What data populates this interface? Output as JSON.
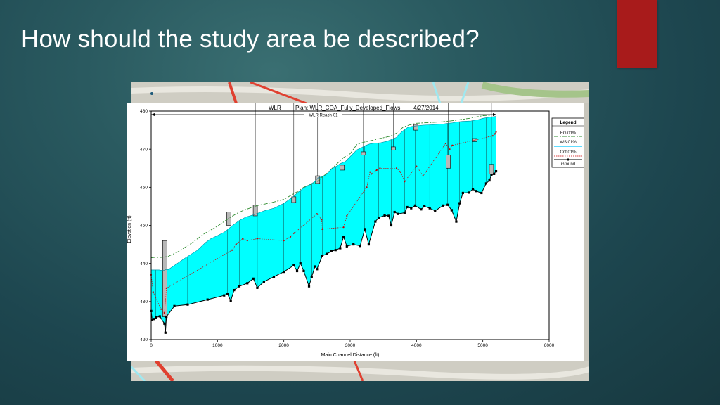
{
  "slide": {
    "title": "How should the study area be described?"
  },
  "colors": {
    "accent_bar": "#a81b1b",
    "water_fill": "#00ffff",
    "ground_line": "#000000",
    "energy_grade": "#2e8b2e",
    "critical_depth": "#cc0000"
  },
  "chart_data": {
    "type": "line",
    "header": {
      "project": "WLR",
      "plan": "Plan: WLR_COA_Fully_Developed_Flows",
      "date": "4/27/2014"
    },
    "reach_label": "WLR Reach-01",
    "xlabel": "Main Channel Distance (ft)",
    "ylabel": "Elevation (ft)",
    "xlim": [
      0,
      6000
    ],
    "ylim": [
      420,
      480
    ],
    "x_ticks": [
      0,
      1000,
      2000,
      3000,
      4000,
      5000,
      6000
    ],
    "y_ticks": [
      420,
      430,
      440,
      450,
      460,
      470,
      480
    ],
    "grid": false,
    "legend_position": "top-right",
    "legend": {
      "title": "Legend",
      "items": [
        {
          "label": "EG  01%",
          "key": "eg"
        },
        {
          "label": "WS  01%",
          "key": "ws"
        },
        {
          "label": "Crit  01%",
          "key": "crit"
        },
        {
          "label": "Ground",
          "key": "ground"
        }
      ]
    },
    "series": [
      {
        "name": "Ground",
        "x": [
          0,
          15,
          40,
          70,
          130,
          200,
          215,
          230,
          350,
          550,
          850,
          1100,
          1150,
          1200,
          1250,
          1330,
          1450,
          1540,
          1600,
          1700,
          1850,
          2000,
          2150,
          2200,
          2250,
          2300,
          2380,
          2420,
          2470,
          2500,
          2580,
          2650,
          2720,
          2780,
          2850,
          2900,
          2950,
          3050,
          3150,
          3220,
          3280,
          3380,
          3430,
          3520,
          3580,
          3620,
          3670,
          3720,
          3820,
          3860,
          3920,
          3980,
          4070,
          4120,
          4200,
          4280,
          4400,
          4470,
          4530,
          4600,
          4650,
          4700,
          4790,
          4850,
          4900,
          4980,
          5050,
          5100,
          5130,
          5170,
          5200
        ],
        "y": [
          427.5,
          425.2,
          425.4,
          425.8,
          426.1,
          424.2,
          421.8,
          426.0,
          428.8,
          429.2,
          430.5,
          431.6,
          432.0,
          430.2,
          433.0,
          434.0,
          434.8,
          436.0,
          433.6,
          435.2,
          436.5,
          437.8,
          439.5,
          438.0,
          440.0,
          438.0,
          434.0,
          436.5,
          439.2,
          438.5,
          442.0,
          442.5,
          443.2,
          443.5,
          444.0,
          447.0,
          444.5,
          445.0,
          444.6,
          449.0,
          445.0,
          451.0,
          452.0,
          452.6,
          452.5,
          450.0,
          453.5,
          453.0,
          453.3,
          454.8,
          454.5,
          455.2,
          454.2,
          455.0,
          454.5,
          453.8,
          455.2,
          455.4,
          454.0,
          451.0,
          455.8,
          458.5,
          458.6,
          459.5,
          459.0,
          458.5,
          461.0,
          461.8,
          463.2,
          463.5,
          464.2
        ]
      },
      {
        "name": "WS  01%",
        "x": [
          0,
          30,
          60,
          90,
          120,
          150,
          190,
          200,
          220,
          260,
          520,
          700,
          820,
          900,
          1000,
          1100,
          1180,
          1230,
          1330,
          1430,
          1550,
          1610,
          1700,
          1850,
          2000,
          2100,
          2150,
          2200,
          2300,
          2400,
          2450,
          2520,
          2560,
          2630,
          2720,
          2800,
          2850,
          2930,
          3100,
          3180,
          3220,
          3300,
          3380,
          3460,
          3560,
          3630,
          3700,
          3720,
          3780,
          3860,
          3880,
          3940,
          4040,
          4100,
          4200,
          4300,
          4400,
          4480,
          4540,
          4590,
          4640,
          4700,
          4820,
          4880,
          4920,
          5000,
          5100,
          5200
        ],
        "y": [
          438.3,
          438.3,
          438.3,
          438.3,
          438.3,
          438.2,
          438.2,
          438.2,
          438.4,
          438.4,
          441.5,
          443.5,
          445.5,
          446.5,
          447.3,
          448.2,
          449.3,
          450.0,
          451.3,
          452.2,
          452.8,
          453.2,
          453.8,
          454.5,
          455.8,
          457.0,
          457.6,
          458.5,
          459.8,
          460.8,
          461.3,
          462.5,
          462.7,
          463.2,
          464.8,
          465.6,
          466.2,
          466.8,
          469.8,
          470.5,
          470.9,
          471.4,
          471.6,
          471.7,
          472.1,
          472.6,
          473.1,
          473.6,
          474.6,
          475.6,
          475.8,
          476.0,
          476.2,
          476.3,
          476.4,
          476.5,
          476.6,
          476.8,
          476.9,
          477.1,
          477.2,
          477.3,
          477.4,
          477.6,
          477.7,
          478.1,
          478.4,
          478.6
        ]
      },
      {
        "name": "EG  01%",
        "x": [
          0,
          50,
          150,
          250,
          400,
          600,
          800,
          1000,
          1100,
          1200,
          1300,
          1400,
          1500,
          1600,
          1800,
          2000,
          2100,
          2200,
          2300,
          2500,
          2700,
          2900,
          3000,
          3100,
          3200,
          3300,
          3400,
          3500,
          3600,
          3700,
          3800,
          3900,
          4000,
          4200,
          4400,
          4600,
          4800,
          5000,
          5100,
          5200
        ],
        "y": [
          441.5,
          441.6,
          441.6,
          441.8,
          443.0,
          445.2,
          447.8,
          449.8,
          451.0,
          452.2,
          453.2,
          454.0,
          454.6,
          455.2,
          455.9,
          456.8,
          457.8,
          458.8,
          460.0,
          461.4,
          464.5,
          467.8,
          468.8,
          471.2,
          471.8,
          472.2,
          472.6,
          473.0,
          473.4,
          474.2,
          475.8,
          476.4,
          476.8,
          477.0,
          477.2,
          477.6,
          478.1,
          478.8,
          478.9,
          479.1
        ]
      },
      {
        "name": "Crit  01%",
        "x": [
          0,
          30,
          150,
          200,
          230,
          1220,
          1280,
          1380,
          1450,
          1600,
          2000,
          2100,
          2160,
          2500,
          2570,
          2580,
          2900,
          2950,
          3250,
          3300,
          3320,
          3400,
          3450,
          3700,
          3760,
          3820,
          4000,
          4100,
          4440,
          4500,
          4540,
          5150,
          5180,
          5200
        ],
        "y": [
          437.0,
          432.5,
          428.0,
          427.0,
          433.5,
          443.5,
          445.0,
          446.5,
          446.0,
          446.5,
          446.0,
          447.0,
          448.0,
          453.0,
          451.5,
          449.0,
          449.5,
          452.5,
          460.0,
          464.0,
          463.5,
          464.5,
          465.0,
          465.0,
          464.0,
          461.5,
          465.5,
          463.0,
          471.5,
          470.0,
          471.0,
          473.5,
          474.0,
          474.5
        ]
      }
    ],
    "structures": [
      {
        "x": 205,
        "bottom": 426.0,
        "top": 446.0
      },
      {
        "x": 1170,
        "bottom": 450.0,
        "top": 453.5
      },
      {
        "x": 1570,
        "bottom": 452.5,
        "top": 455.3
      },
      {
        "x": 2150,
        "bottom": 456.0,
        "top": 457.5
      },
      {
        "x": 2510,
        "bottom": 461.0,
        "top": 463.0
      },
      {
        "x": 2880,
        "bottom": 464.5,
        "top": 465.8
      },
      {
        "x": 3200,
        "bottom": 468.5,
        "top": 469.3
      },
      {
        "x": 3650,
        "bottom": 469.8,
        "top": 470.6
      },
      {
        "x": 3990,
        "bottom": 475.0,
        "top": 476.5
      },
      {
        "x": 4480,
        "bottom": 465.0,
        "top": 468.5
      },
      {
        "x": 4880,
        "bottom": 472.0,
        "top": 472.8
      },
      {
        "x": 5130,
        "bottom": 463.5,
        "top": 466.0
      }
    ]
  }
}
